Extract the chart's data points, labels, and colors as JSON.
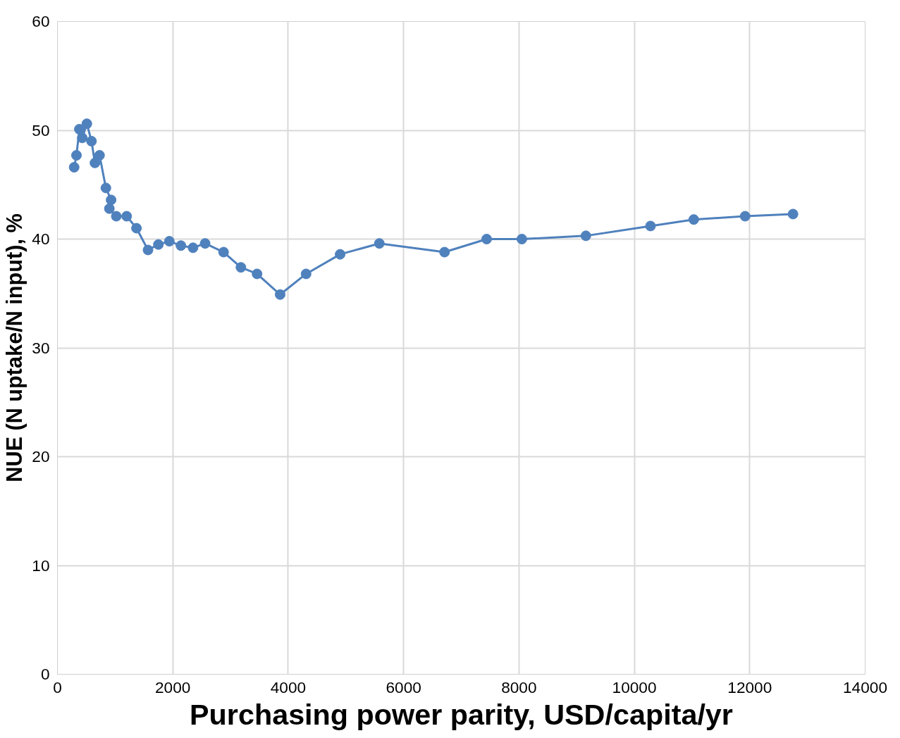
{
  "chart_data": {
    "type": "line",
    "xlabel": "Purchasing power parity, USD/capita/yr",
    "ylabel": "NUE (N uptake/N input), %",
    "x": [
      290,
      330,
      380,
      430,
      510,
      590,
      650,
      730,
      840,
      930,
      900,
      1020,
      1200,
      1370,
      1570,
      1750,
      1940,
      2140,
      2350,
      2560,
      2880,
      3180,
      3460,
      3860,
      4310,
      4900,
      5580,
      6710,
      7440,
      8050,
      9160,
      10280,
      11030,
      11920,
      12750
    ],
    "series": [
      {
        "color": "#4f81bd",
        "values": [
          46.6,
          47.7,
          50.1,
          49.3,
          50.6,
          49.0,
          47.0,
          47.7,
          44.7,
          43.6,
          42.8,
          42.1,
          42.1,
          41.0,
          39.0,
          39.5,
          39.8,
          39.4,
          39.2,
          39.6,
          38.8,
          37.4,
          36.8,
          34.9,
          36.8,
          38.6,
          39.6,
          38.8,
          40.0,
          40.0,
          40.3,
          41.2,
          41.8,
          42.1,
          42.3
        ]
      }
    ],
    "xlim": [
      0,
      14000
    ],
    "xticks": [
      0,
      2000,
      4000,
      6000,
      8000,
      10000,
      12000,
      14000
    ],
    "ylim": [
      0,
      60
    ],
    "yticks": [
      0,
      10,
      20,
      30,
      40,
      50,
      60
    ],
    "grid": true,
    "marker": "circle",
    "line_style": "solid"
  }
}
